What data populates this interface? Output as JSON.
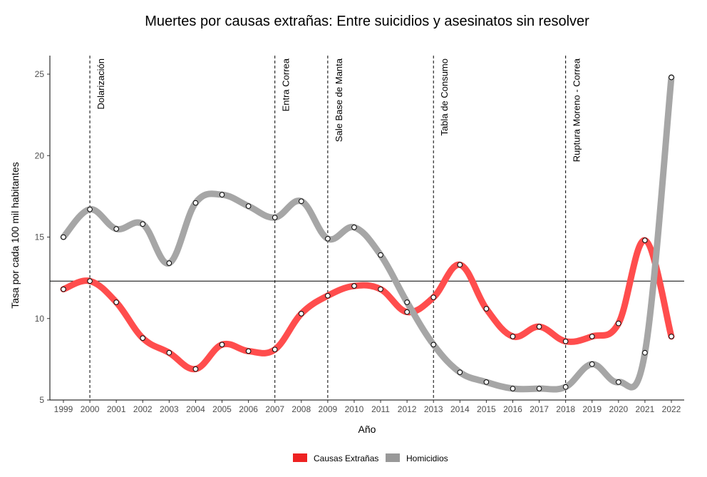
{
  "chart_data": {
    "type": "line",
    "title": "Muertes por causas extrañas:  Entre suicidios y asesinatos sin resolver",
    "xlabel": "Año",
    "ylabel": "Tasa por cada 100 mil habitantes",
    "x": [
      1999,
      2000,
      2001,
      2002,
      2003,
      2004,
      2005,
      2006,
      2007,
      2008,
      2009,
      2010,
      2011,
      2012,
      2013,
      2014,
      2015,
      2016,
      2017,
      2018,
      2019,
      2020,
      2021,
      2022
    ],
    "xlim": [
      1999,
      2022
    ],
    "ylim": [
      5,
      26
    ],
    "yticks": [
      5,
      10,
      15,
      20,
      25
    ],
    "series": [
      {
        "name": "Causas Extrañas",
        "color": "#ff4d4d",
        "values": [
          11.8,
          12.3,
          11.0,
          8.8,
          7.9,
          6.9,
          8.4,
          8.0,
          8.1,
          10.3,
          11.4,
          12.0,
          11.8,
          10.4,
          11.3,
          13.3,
          10.6,
          8.9,
          9.5,
          8.6,
          8.9,
          9.7,
          14.8,
          8.9
        ]
      },
      {
        "name": "Homicidios",
        "color": "#a6a6a6",
        "values": [
          15.0,
          16.7,
          15.5,
          15.8,
          13.4,
          17.1,
          17.6,
          16.9,
          16.2,
          17.2,
          14.9,
          15.6,
          13.9,
          11.0,
          8.4,
          6.7,
          6.1,
          5.7,
          5.7,
          5.8,
          7.2,
          6.1,
          7.9,
          24.8
        ]
      }
    ],
    "hline": 12.3,
    "vlines": [
      {
        "x": 2000,
        "label": "Dolarización"
      },
      {
        "x": 2007,
        "label": "Entra Correa"
      },
      {
        "x": 2009,
        "label": "Sale Base de Manta"
      },
      {
        "x": 2013,
        "label": "Tabla de Consumo"
      },
      {
        "x": 2018,
        "label": "Ruptura Moreno - Correa"
      }
    ],
    "grid": false,
    "legend": {
      "position": "bottom",
      "entries": [
        {
          "label": "Causas Extrañas",
          "color": "#ee2222"
        },
        {
          "label": "Homicidios",
          "color": "#999999"
        }
      ]
    }
  }
}
